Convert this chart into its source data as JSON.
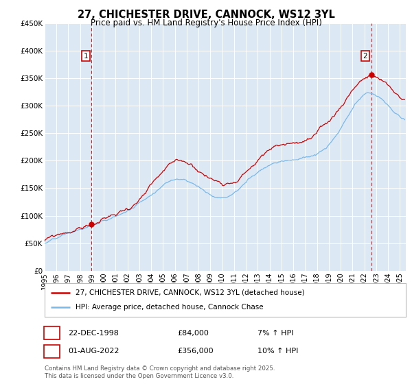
{
  "title": "27, CHICHESTER DRIVE, CANNOCK, WS12 3YL",
  "subtitle": "Price paid vs. HM Land Registry's House Price Index (HPI)",
  "bg_color": "#ffffff",
  "plot_bg_color": "#dce9f5",
  "grid_color": "#ffffff",
  "hpi_color": "#7ab8e8",
  "price_color": "#cc0000",
  "vline_color": "#cc0000",
  "ylim": [
    0,
    450000
  ],
  "yticks": [
    0,
    50000,
    100000,
    150000,
    200000,
    250000,
    300000,
    350000,
    400000,
    450000
  ],
  "ytick_labels": [
    "£0",
    "£50K",
    "£100K",
    "£150K",
    "£200K",
    "£250K",
    "£300K",
    "£350K",
    "£400K",
    "£450K"
  ],
  "xlim_start": 1995.0,
  "xlim_end": 2025.5,
  "purchase1_x": 1998.97,
  "purchase1_y": 84000,
  "purchase2_x": 2022.58,
  "purchase2_y": 356000,
  "legend_line1": "27, CHICHESTER DRIVE, CANNOCK, WS12 3YL (detached house)",
  "legend_line2": "HPI: Average price, detached house, Cannock Chase",
  "annotation1_date": "22-DEC-1998",
  "annotation1_price": "£84,000",
  "annotation1_hpi": "7% ↑ HPI",
  "annotation2_date": "01-AUG-2022",
  "annotation2_price": "£356,000",
  "annotation2_hpi": "10% ↑ HPI",
  "footer": "Contains HM Land Registry data © Crown copyright and database right 2025.\nThis data is licensed under the Open Government Licence v3.0."
}
